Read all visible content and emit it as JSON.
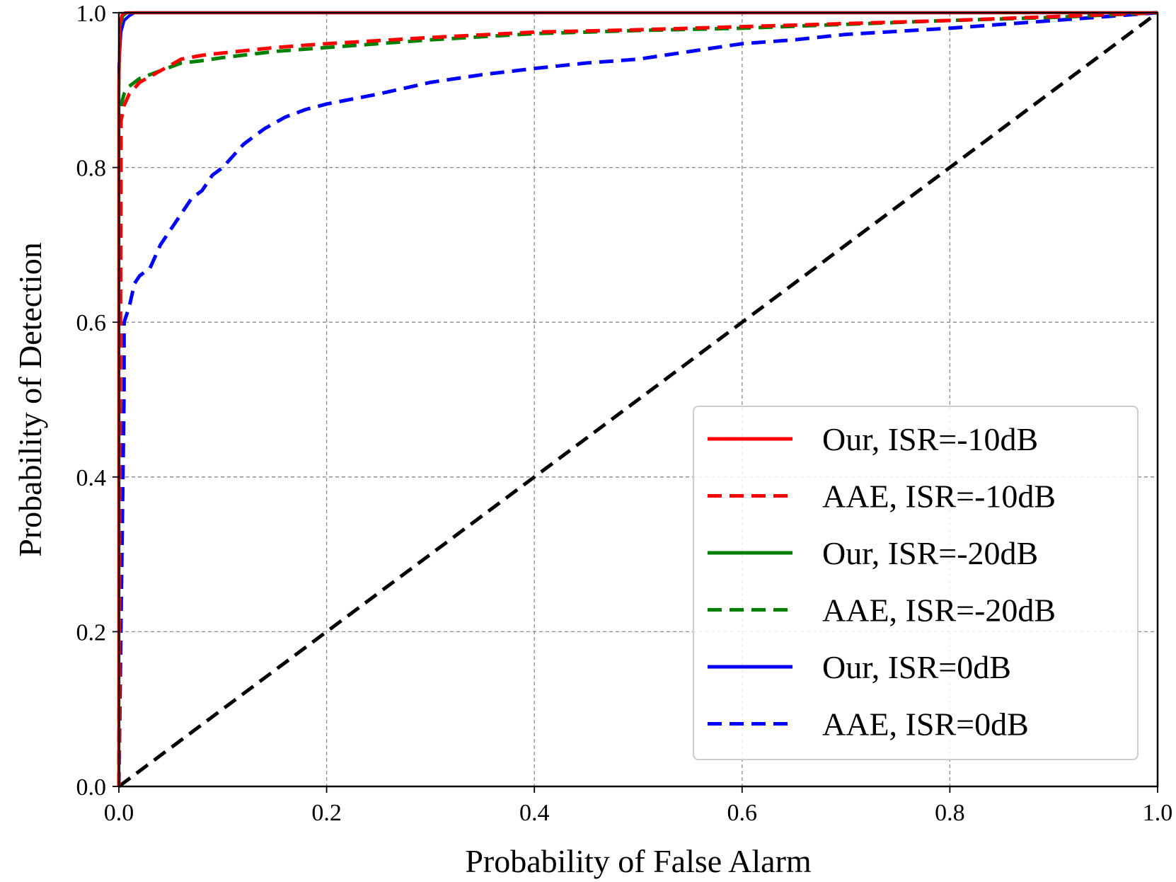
{
  "chart_data": {
    "type": "line",
    "title": "",
    "xlabel": "Probability of False Alarm",
    "ylabel": "Probability of Detection",
    "xlim": [
      0.0,
      1.0
    ],
    "ylim": [
      0.0,
      1.0
    ],
    "xticks": [
      "0.0",
      "0.2",
      "0.4",
      "0.6",
      "0.8",
      "1.0"
    ],
    "yticks": [
      "0.0",
      "0.2",
      "0.4",
      "0.6",
      "0.8",
      "1.0"
    ],
    "grid": true,
    "legend_position": "lower-right",
    "series": [
      {
        "name": "Our, ISR=-10dB",
        "color": "#ff0000",
        "style": "solid",
        "x": [
          0.0,
          0.0,
          0.001,
          0.003,
          0.006,
          1.0
        ],
        "y": [
          0.0,
          0.9,
          0.985,
          0.997,
          1.0,
          1.0
        ]
      },
      {
        "name": "AAE, ISR=-10dB",
        "color": "#ff0000",
        "style": "dashed",
        "x": [
          0.0,
          0.002,
          0.002,
          0.005,
          0.01,
          0.02,
          0.04,
          0.06,
          0.08,
          0.1,
          0.15,
          0.2,
          0.3,
          0.4,
          0.5,
          0.6,
          0.7,
          0.8,
          0.9,
          1.0
        ],
        "y": [
          0.0,
          0.79,
          0.86,
          0.88,
          0.895,
          0.91,
          0.925,
          0.94,
          0.945,
          0.948,
          0.955,
          0.96,
          0.968,
          0.975,
          0.978,
          0.982,
          0.986,
          0.99,
          0.995,
          1.0
        ]
      },
      {
        "name": "Our, ISR=-20dB",
        "color": "#008000",
        "style": "solid",
        "x": [
          0.0,
          0.0,
          0.001,
          0.004,
          0.008,
          1.0
        ],
        "y": [
          0.0,
          0.9,
          0.982,
          0.996,
          1.0,
          1.0
        ]
      },
      {
        "name": "AAE, ISR=-20dB",
        "color": "#008000",
        "style": "dashed",
        "x": [
          0.0,
          0.002,
          0.005,
          0.01,
          0.02,
          0.04,
          0.06,
          0.08,
          0.1,
          0.15,
          0.2,
          0.3,
          0.4,
          0.5,
          0.6,
          0.7,
          0.8,
          0.9,
          1.0
        ],
        "y": [
          0.0,
          0.88,
          0.895,
          0.905,
          0.915,
          0.925,
          0.935,
          0.938,
          0.942,
          0.95,
          0.955,
          0.965,
          0.973,
          0.977,
          0.98,
          0.985,
          0.99,
          0.994,
          1.0
        ]
      },
      {
        "name": "Our, ISR=0dB",
        "color": "#0000ff",
        "style": "solid",
        "x": [
          0.0,
          0.0,
          0.002,
          0.005,
          0.01,
          0.015,
          1.0
        ],
        "y": [
          0.0,
          0.93,
          0.975,
          0.99,
          0.996,
          1.0,
          1.0
        ]
      },
      {
        "name": "AAE, ISR=0dB",
        "color": "#0000ff",
        "style": "dashed",
        "x": [
          0.0,
          0.005,
          0.005,
          0.01,
          0.015,
          0.02,
          0.03,
          0.04,
          0.05,
          0.06,
          0.07,
          0.08,
          0.09,
          0.1,
          0.12,
          0.14,
          0.16,
          0.18,
          0.2,
          0.25,
          0.3,
          0.35,
          0.4,
          0.45,
          0.5,
          0.55,
          0.6,
          0.65,
          0.7,
          0.75,
          0.8,
          0.85,
          0.9,
          0.95,
          1.0
        ],
        "y": [
          0.0,
          0.51,
          0.6,
          0.62,
          0.65,
          0.66,
          0.67,
          0.7,
          0.72,
          0.74,
          0.76,
          0.77,
          0.79,
          0.8,
          0.83,
          0.85,
          0.865,
          0.875,
          0.882,
          0.895,
          0.91,
          0.92,
          0.928,
          0.935,
          0.94,
          0.95,
          0.96,
          0.965,
          0.972,
          0.976,
          0.98,
          0.985,
          0.99,
          0.995,
          1.0
        ]
      },
      {
        "name": "",
        "color": "#000000",
        "style": "dashed",
        "x": [
          0.0,
          1.0
        ],
        "y": [
          0.0,
          1.0
        ]
      }
    ]
  }
}
